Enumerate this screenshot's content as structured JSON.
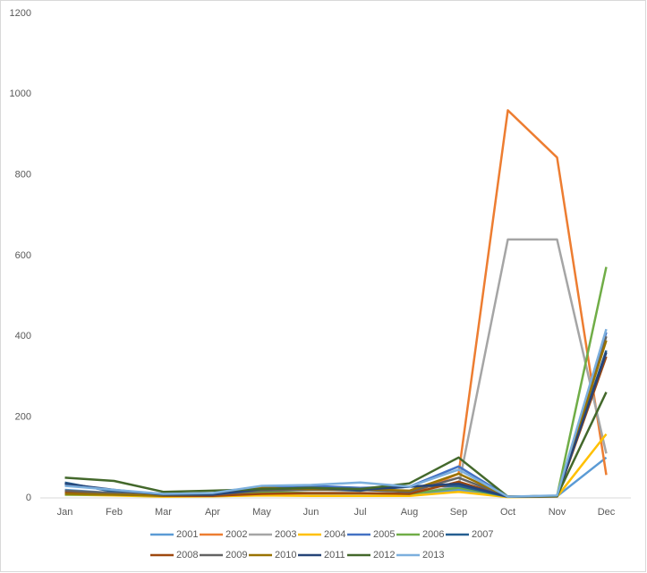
{
  "chart_data": {
    "type": "line",
    "categories": [
      "Jan",
      "Feb",
      "Mar",
      "Apr",
      "May",
      "Jun",
      "Jul",
      "Aug",
      "Sep",
      "Oct",
      "Nov",
      "Dec"
    ],
    "ylim": [
      0,
      1200
    ],
    "yticks": [
      0,
      200,
      400,
      600,
      800,
      1000,
      1200
    ],
    "grid": false,
    "legend": "bottom",
    "series": [
      {
        "name": "2001",
        "color": "#5B9BD5",
        "values": [
          20,
          12,
          5,
          5,
          8,
          10,
          12,
          8,
          20,
          3,
          4,
          100
        ]
      },
      {
        "name": "2002",
        "color": "#ED7D31",
        "values": [
          12,
          10,
          5,
          6,
          10,
          8,
          10,
          8,
          60,
          960,
          843,
          57
        ]
      },
      {
        "name": "2003",
        "color": "#A5A5A5",
        "values": [
          10,
          8,
          5,
          6,
          12,
          10,
          10,
          8,
          30,
          640,
          640,
          110
        ]
      },
      {
        "name": "2004",
        "color": "#FFC000",
        "values": [
          8,
          6,
          3,
          4,
          6,
          5,
          5,
          5,
          15,
          2,
          3,
          158
        ]
      },
      {
        "name": "2005",
        "color": "#4472C4",
        "values": [
          35,
          18,
          10,
          10,
          28,
          30,
          25,
          28,
          78,
          3,
          5,
          410
        ]
      },
      {
        "name": "2006",
        "color": "#70AD47",
        "values": [
          8,
          8,
          5,
          8,
          15,
          12,
          12,
          10,
          25,
          3,
          5,
          572
        ]
      },
      {
        "name": "2007",
        "color": "#255E91",
        "values": [
          38,
          15,
          10,
          10,
          20,
          22,
          18,
          28,
          30,
          3,
          5,
          365
        ]
      },
      {
        "name": "2008",
        "color": "#9E480E",
        "values": [
          15,
          10,
          5,
          5,
          10,
          12,
          12,
          10,
          40,
          3,
          4,
          350
        ]
      },
      {
        "name": "2009",
        "color": "#636363",
        "values": [
          18,
          12,
          8,
          8,
          18,
          20,
          20,
          15,
          50,
          3,
          4,
          400
        ]
      },
      {
        "name": "2010",
        "color": "#997300",
        "values": [
          10,
          8,
          6,
          8,
          25,
          22,
          22,
          18,
          60,
          3,
          5,
          390
        ]
      },
      {
        "name": "2011",
        "color": "#264478",
        "values": [
          35,
          20,
          8,
          8,
          22,
          25,
          20,
          28,
          35,
          3,
          4,
          360
        ]
      },
      {
        "name": "2012",
        "color": "#43682B",
        "values": [
          50,
          42,
          15,
          18,
          22,
          25,
          22,
          36,
          100,
          3,
          5,
          262
        ]
      },
      {
        "name": "2013",
        "color": "#7CAFDD",
        "values": [
          30,
          20,
          10,
          12,
          30,
          32,
          38,
          28,
          70,
          3,
          6,
          418
        ]
      }
    ]
  }
}
